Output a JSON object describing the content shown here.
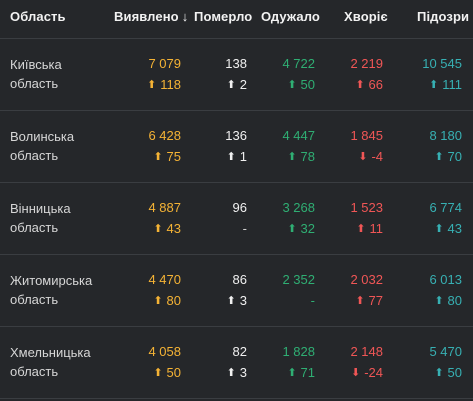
{
  "header": {
    "region": "Область",
    "detected": "Виявлено",
    "sort_arrow": "↓",
    "dead": "Померло",
    "recovered": "Одужало",
    "sick": "Хворіє",
    "suspected": "Підозри"
  },
  "colors": {
    "background": "#25272a",
    "detected": "#f5b335",
    "dead": "#f0f0f0",
    "recovered": "#2fae73",
    "sick": "#f05656",
    "suspected": "#37b0b3",
    "divider": "#3a3d41"
  },
  "rows": [
    {
      "region_line1": "Київська",
      "region_line2": "область",
      "detected": "7 079",
      "detected_delta": "118",
      "detected_arrow": "⬆",
      "dead": "138",
      "dead_delta": "2",
      "dead_arrow": "⬆",
      "recovered": "4 722",
      "recovered_delta": "50",
      "recovered_arrow": "⬆",
      "sick": "2 219",
      "sick_delta": "66",
      "sick_arrow": "⬆",
      "suspected": "10 545",
      "suspected_delta": "111",
      "suspected_arrow": "⬆"
    },
    {
      "region_line1": "Волинська",
      "region_line2": "область",
      "detected": "6 428",
      "detected_delta": "75",
      "detected_arrow": "⬆",
      "dead": "136",
      "dead_delta": "1",
      "dead_arrow": "⬆",
      "recovered": "4 447",
      "recovered_delta": "78",
      "recovered_arrow": "⬆",
      "sick": "1 845",
      "sick_delta": "-4",
      "sick_arrow": "⬇",
      "suspected": "8 180",
      "suspected_delta": "70",
      "suspected_arrow": "⬆"
    },
    {
      "region_line1": "Вінницька",
      "region_line2": "область",
      "detected": "4 887",
      "detected_delta": "43",
      "detected_arrow": "⬆",
      "dead": "96",
      "dead_delta": "-",
      "dead_arrow": "",
      "recovered": "3 268",
      "recovered_delta": "32",
      "recovered_arrow": "⬆",
      "sick": "1 523",
      "sick_delta": "11",
      "sick_arrow": "⬆",
      "suspected": "6 774",
      "suspected_delta": "43",
      "suspected_arrow": "⬆"
    },
    {
      "region_line1": "Житомирська",
      "region_line2": "область",
      "detected": "4 470",
      "detected_delta": "80",
      "detected_arrow": "⬆",
      "dead": "86",
      "dead_delta": "3",
      "dead_arrow": "⬆",
      "recovered": "2 352",
      "recovered_delta": "-",
      "recovered_arrow": "",
      "sick": "2 032",
      "sick_delta": "77",
      "sick_arrow": "⬆",
      "suspected": "6 013",
      "suspected_delta": "80",
      "suspected_arrow": "⬆"
    },
    {
      "region_line1": "Хмельницька",
      "region_line2": "область",
      "detected": "4 058",
      "detected_delta": "50",
      "detected_arrow": "⬆",
      "dead": "82",
      "dead_delta": "3",
      "dead_arrow": "⬆",
      "recovered": "1 828",
      "recovered_delta": "71",
      "recovered_arrow": "⬆",
      "sick": "2 148",
      "sick_delta": "-24",
      "sick_arrow": "⬇",
      "suspected": "5 470",
      "suspected_delta": "50",
      "suspected_arrow": "⬆"
    }
  ]
}
